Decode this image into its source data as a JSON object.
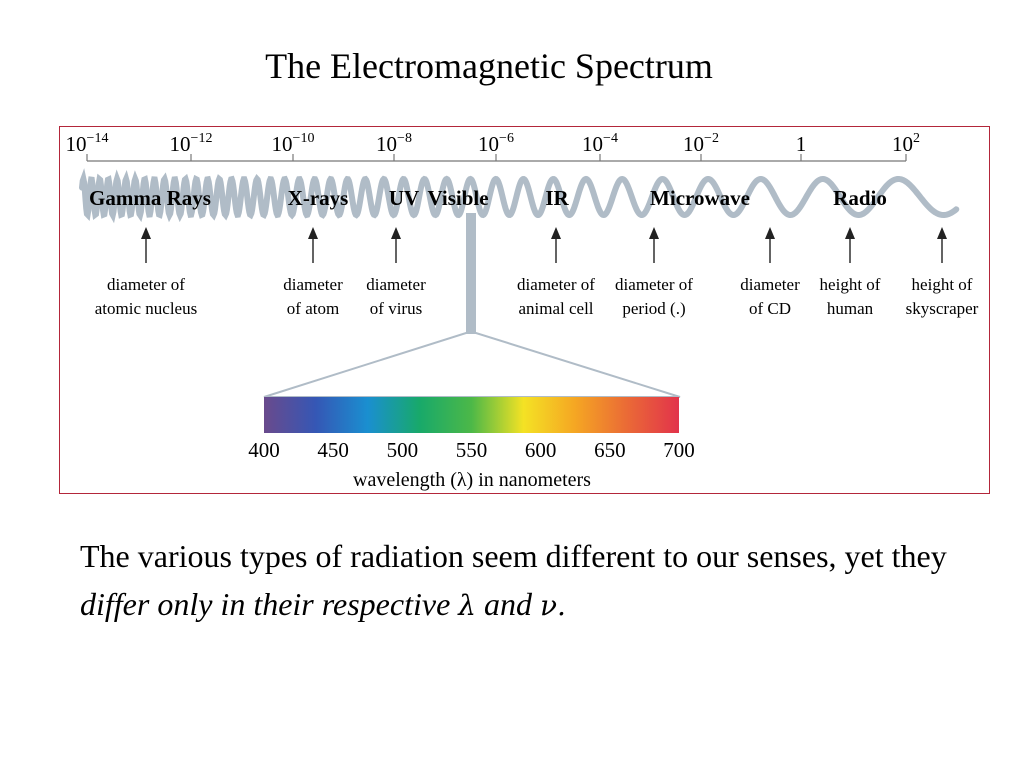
{
  "title": "The Electromagnetic Spectrum",
  "scale_ticks": [
    {
      "base": "10",
      "exp": "−14"
    },
    {
      "base": "10",
      "exp": "−12"
    },
    {
      "base": "10",
      "exp": "−10"
    },
    {
      "base": "10",
      "exp": "−8"
    },
    {
      "base": "10",
      "exp": "−6"
    },
    {
      "base": "10",
      "exp": "−4"
    },
    {
      "base": "10",
      "exp": "−2"
    },
    {
      "base": "1",
      "exp": ""
    },
    {
      "base": "10",
      "exp": "2"
    }
  ],
  "regions": [
    "Gamma Rays",
    "X-rays",
    "UV",
    "Visible",
    "IR",
    "Microwave",
    "Radio"
  ],
  "examples": [
    {
      "line1": "diameter of",
      "line2": "atomic nucleus"
    },
    {
      "line1": "diameter",
      "line2": "of atom"
    },
    {
      "line1": "diameter",
      "line2": "of virus"
    },
    {
      "line1": "diameter of",
      "line2": "animal cell"
    },
    {
      "line1": "diameter of",
      "line2": "period (.)"
    },
    {
      "line1": "diameter",
      "line2": "of CD"
    },
    {
      "line1": "height of",
      "line2": "human"
    },
    {
      "line1": "height of",
      "line2": "skyscraper"
    }
  ],
  "visible_ticks": [
    "400",
    "450",
    "500",
    "550",
    "600",
    "650",
    "700"
  ],
  "visible_axis_label": "wavelength (λ) in nanometers",
  "colors": {
    "border": "#b3263a",
    "wave": "#b0bcc7",
    "spectrum": [
      "#6a4a8c",
      "#3557b5",
      "#1a8fd0",
      "#18a96a",
      "#4cb848",
      "#f4e224",
      "#f5a623",
      "#ea6a36",
      "#e2334b"
    ]
  },
  "caption": {
    "part1": "The various types of radiation seem different to our senses, yet they ",
    "emphasis": "differ only in their respective ",
    "lambda": "λ",
    "and": " and ",
    "nu": "ν."
  }
}
